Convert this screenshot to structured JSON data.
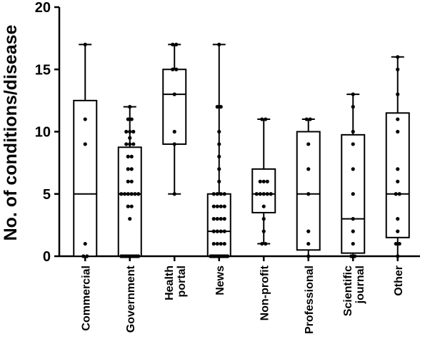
{
  "chart_data": {
    "type": "box",
    "ylabel": "No. of conditions/disease",
    "xlabel": "",
    "ylim": [
      0,
      20
    ],
    "yticks": [
      0,
      5,
      10,
      15,
      20
    ],
    "grid": false,
    "categories": [
      [
        "Commercial"
      ],
      [
        "Government"
      ],
      [
        "Health",
        "portal"
      ],
      [
        "News"
      ],
      [
        "Non-profit"
      ],
      [
        "Professional"
      ],
      [
        "Scientific",
        "journal"
      ],
      [
        "Other"
      ]
    ],
    "boxes": [
      {
        "min": 0,
        "q1": 0,
        "median": 5,
        "q3": 12.5,
        "max": 17,
        "points": [
          0,
          0,
          1,
          9,
          11,
          17
        ]
      },
      {
        "min": 0,
        "q1": 0,
        "median": 5,
        "q3": 8.75,
        "max": 12,
        "points": [
          0,
          0,
          0,
          0,
          0,
          0,
          0,
          0,
          0,
          0,
          3,
          4,
          4,
          5,
          5,
          5,
          5,
          5,
          5,
          6,
          6,
          7,
          7,
          8,
          8,
          9,
          9,
          9,
          9.5,
          10,
          10,
          10,
          11,
          11,
          12
        ]
      },
      {
        "min": 5,
        "q1": 9,
        "median": 13,
        "q3": 15,
        "max": 17,
        "points": [
          5,
          9,
          10,
          13,
          15,
          15,
          17,
          17
        ]
      },
      {
        "min": 0,
        "q1": 0,
        "median": 2,
        "q3": 5,
        "max": 17,
        "points": [
          0,
          0,
          0,
          0,
          0,
          0,
          0,
          0,
          0,
          0,
          0,
          0,
          1,
          1,
          1,
          1,
          2,
          2,
          2,
          2,
          3,
          3,
          3,
          3,
          4,
          4,
          4,
          4,
          5,
          5,
          5,
          5,
          6,
          7,
          8,
          9,
          10,
          12,
          12,
          17
        ]
      },
      {
        "min": 1,
        "q1": 3.5,
        "median": 5,
        "q3": 7,
        "max": 11,
        "points": [
          1,
          1,
          2,
          3,
          4,
          5,
          5,
          5,
          5,
          5,
          6,
          6,
          6,
          11,
          11
        ]
      },
      {
        "min": 0,
        "q1": 0.5,
        "median": 5,
        "q3": 10,
        "max": 11,
        "points": [
          0,
          1,
          2,
          5,
          7,
          9,
          11,
          11
        ]
      },
      {
        "min": 0,
        "q1": 0.25,
        "median": 3,
        "q3": 9.75,
        "max": 13,
        "points": [
          0,
          0,
          1,
          2,
          3,
          5,
          7,
          9,
          10,
          12,
          13
        ]
      },
      {
        "min": 0,
        "q1": 1.5,
        "median": 5,
        "q3": 11.5,
        "max": 16,
        "points": [
          0,
          1,
          1,
          2,
          3,
          5,
          5,
          6,
          7,
          10,
          11,
          13,
          15,
          16
        ]
      }
    ]
  }
}
